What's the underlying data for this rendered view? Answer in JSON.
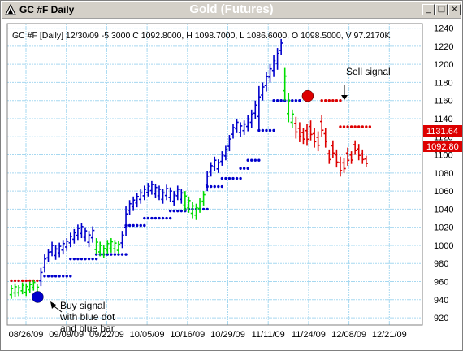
{
  "window": {
    "title": "GC #F Daily",
    "chart_title": "Gold (Futures)",
    "controls": {
      "minimize": "_",
      "maximize": "□",
      "close": "×"
    }
  },
  "info_line": "GC #F [Daily] 12/30/09  -5.3000 C 1092.8000, H 1098.7000, L 1086.6000, O 1098.5000, V 97.2170K",
  "annotations": {
    "sell": "Sell signal",
    "buy_lines": [
      "Buy signal",
      "with blue dot",
      "and blue bar"
    ]
  },
  "price_tags": {
    "upper": "1131.64",
    "lower": "1092.80"
  },
  "colors": {
    "up": "#0000cc",
    "down": "#dd0000",
    "neutral": "#00dd00",
    "grid": "#a6d8f0",
    "tag_bg": "#dd0000",
    "background": "#ffffff"
  },
  "chart_data": {
    "type": "ohlc",
    "x_tick_labels": [
      "08/26/09",
      "09/09/09",
      "09/22/09",
      "10/05/09",
      "10/16/09",
      "10/29/09",
      "11/11/09",
      "11/24/09",
      "12/08/09",
      "12/21/09"
    ],
    "y_ticks": [
      920,
      940,
      960,
      980,
      1000,
      1020,
      1040,
      1060,
      1080,
      1100,
      1120,
      1140,
      1160,
      1180,
      1200,
      1220,
      1240
    ],
    "ylim": [
      912,
      1245
    ],
    "grid": true,
    "bars": [
      {
        "c": "green",
        "h": 956,
        "l": 941
      },
      {
        "c": "green",
        "h": 958,
        "l": 943
      },
      {
        "c": "green",
        "h": 956,
        "l": 944
      },
      {
        "c": "green",
        "h": 959,
        "l": 946
      },
      {
        "c": "green",
        "h": 958,
        "l": 944
      },
      {
        "c": "green",
        "h": 960,
        "l": 947
      },
      {
        "c": "green",
        "h": 962,
        "l": 950
      },
      {
        "c": "green",
        "h": 957,
        "l": 944
      },
      {
        "c": "blue",
        "h": 975,
        "l": 955
      },
      {
        "c": "blue",
        "h": 990,
        "l": 970
      },
      {
        "c": "blue",
        "h": 996,
        "l": 982
      },
      {
        "c": "blue",
        "h": 1004,
        "l": 988
      },
      {
        "c": "blue",
        "h": 1000,
        "l": 984
      },
      {
        "c": "blue",
        "h": 1003,
        "l": 987
      },
      {
        "c": "blue",
        "h": 1006,
        "l": 990
      },
      {
        "c": "blue",
        "h": 1008,
        "l": 994
      },
      {
        "c": "blue",
        "h": 1014,
        "l": 998
      },
      {
        "c": "blue",
        "h": 1018,
        "l": 1002
      },
      {
        "c": "blue",
        "h": 1023,
        "l": 1006
      },
      {
        "c": "blue",
        "h": 1025,
        "l": 1008
      },
      {
        "c": "blue",
        "h": 1020,
        "l": 1004
      },
      {
        "c": "blue",
        "h": 1016,
        "l": 998
      },
      {
        "c": "blue",
        "h": 1021,
        "l": 1003
      },
      {
        "c": "green",
        "h": 1008,
        "l": 990
      },
      {
        "c": "green",
        "h": 1004,
        "l": 988
      },
      {
        "c": "green",
        "h": 1000,
        "l": 986
      },
      {
        "c": "green",
        "h": 1006,
        "l": 990
      },
      {
        "c": "green",
        "h": 1008,
        "l": 992
      },
      {
        "c": "green",
        "h": 1006,
        "l": 992
      },
      {
        "c": "green",
        "h": 1005,
        "l": 990
      },
      {
        "c": "blue",
        "h": 1016,
        "l": 997
      },
      {
        "c": "blue",
        "h": 1043,
        "l": 1010
      },
      {
        "c": "blue",
        "h": 1050,
        "l": 1034
      },
      {
        "c": "blue",
        "h": 1054,
        "l": 1038
      },
      {
        "c": "blue",
        "h": 1058,
        "l": 1042
      },
      {
        "c": "blue",
        "h": 1062,
        "l": 1046
      },
      {
        "c": "blue",
        "h": 1066,
        "l": 1050
      },
      {
        "c": "blue",
        "h": 1069,
        "l": 1054
      },
      {
        "c": "blue",
        "h": 1071,
        "l": 1056
      },
      {
        "c": "blue",
        "h": 1068,
        "l": 1052
      },
      {
        "c": "blue",
        "h": 1066,
        "l": 1050
      },
      {
        "c": "blue",
        "h": 1062,
        "l": 1046
      },
      {
        "c": "blue",
        "h": 1067,
        "l": 1050
      },
      {
        "c": "blue",
        "h": 1064,
        "l": 1048
      },
      {
        "c": "blue",
        "h": 1060,
        "l": 1044
      },
      {
        "c": "blue",
        "h": 1066,
        "l": 1050
      },
      {
        "c": "blue",
        "h": 1062,
        "l": 1046
      },
      {
        "c": "green",
        "h": 1060,
        "l": 1038
      },
      {
        "c": "green",
        "h": 1054,
        "l": 1036
      },
      {
        "c": "green",
        "h": 1048,
        "l": 1030
      },
      {
        "c": "green",
        "h": 1046,
        "l": 1028
      },
      {
        "c": "green",
        "h": 1052,
        "l": 1036
      },
      {
        "c": "green",
        "h": 1060,
        "l": 1044
      },
      {
        "c": "blue",
        "h": 1082,
        "l": 1060
      },
      {
        "c": "blue",
        "h": 1092,
        "l": 1076
      },
      {
        "c": "blue",
        "h": 1098,
        "l": 1082
      },
      {
        "c": "blue",
        "h": 1095,
        "l": 1080
      },
      {
        "c": "blue",
        "h": 1104,
        "l": 1088
      },
      {
        "c": "blue",
        "h": 1110,
        "l": 1094
      },
      {
        "c": "blue",
        "h": 1122,
        "l": 1104
      },
      {
        "c": "blue",
        "h": 1134,
        "l": 1118
      },
      {
        "c": "blue",
        "h": 1140,
        "l": 1124
      },
      {
        "c": "blue",
        "h": 1136,
        "l": 1120
      },
      {
        "c": "blue",
        "h": 1138,
        "l": 1122
      },
      {
        "c": "blue",
        "h": 1144,
        "l": 1126
      },
      {
        "c": "blue",
        "h": 1150,
        "l": 1130
      },
      {
        "c": "blue",
        "h": 1160,
        "l": 1140
      },
      {
        "c": "blue",
        "h": 1176,
        "l": 1128
      },
      {
        "c": "blue",
        "h": 1180,
        "l": 1160
      },
      {
        "c": "blue",
        "h": 1192,
        "l": 1170
      },
      {
        "c": "blue",
        "h": 1200,
        "l": 1180
      },
      {
        "c": "blue",
        "h": 1210,
        "l": 1186
      },
      {
        "c": "blue",
        "h": 1218,
        "l": 1194
      },
      {
        "c": "blue",
        "h": 1228,
        "l": 1210
      },
      {
        "c": "green",
        "h": 1196,
        "l": 1160
      },
      {
        "c": "green",
        "h": 1168,
        "l": 1136
      },
      {
        "c": "green",
        "h": 1150,
        "l": 1130
      },
      {
        "c": "red",
        "h": 1142,
        "l": 1118
      },
      {
        "c": "red",
        "h": 1136,
        "l": 1114
      },
      {
        "c": "red",
        "h": 1130,
        "l": 1112
      },
      {
        "c": "red",
        "h": 1134,
        "l": 1110
      },
      {
        "c": "red",
        "h": 1138,
        "l": 1116
      },
      {
        "c": "red",
        "h": 1130,
        "l": 1108
      },
      {
        "c": "red",
        "h": 1126,
        "l": 1104
      },
      {
        "c": "red",
        "h": 1144,
        "l": 1120
      },
      {
        "c": "red",
        "h": 1130,
        "l": 1108
      },
      {
        "c": "red",
        "h": 1106,
        "l": 1090
      },
      {
        "c": "red",
        "h": 1116,
        "l": 1096
      },
      {
        "c": "red",
        "h": 1106,
        "l": 1086
      },
      {
        "c": "red",
        "h": 1098,
        "l": 1076
      },
      {
        "c": "red",
        "h": 1096,
        "l": 1080
      },
      {
        "c": "red",
        "h": 1108,
        "l": 1088
      },
      {
        "c": "red",
        "h": 1104,
        "l": 1090
      },
      {
        "c": "red",
        "h": 1116,
        "l": 1100
      },
      {
        "c": "red",
        "h": 1112,
        "l": 1094
      },
      {
        "c": "red",
        "h": 1106,
        "l": 1090
      },
      {
        "c": "red",
        "h": 1099,
        "l": 1087
      }
    ],
    "stop_dots": [
      {
        "c": "red",
        "y": 961,
        "from": 0,
        "to": 7
      },
      {
        "c": "blue",
        "y": 966,
        "from": 9,
        "to": 16
      },
      {
        "c": "blue",
        "y": 985,
        "from": 16,
        "to": 23
      },
      {
        "c": "blue",
        "y": 990,
        "from": 23,
        "to": 31
      },
      {
        "c": "blue",
        "y": 1022,
        "from": 31,
        "to": 36
      },
      {
        "c": "blue",
        "y": 1030,
        "from": 36,
        "to": 43
      },
      {
        "c": "blue",
        "y": 1038,
        "from": 43,
        "to": 47
      },
      {
        "c": "blue",
        "y": 1040,
        "from": 47,
        "to": 53
      },
      {
        "c": "blue",
        "y": 1065,
        "from": 53,
        "to": 57
      },
      {
        "c": "blue",
        "y": 1074,
        "from": 57,
        "to": 62
      },
      {
        "c": "blue",
        "y": 1085,
        "from": 62,
        "to": 64
      },
      {
        "c": "blue",
        "y": 1094,
        "from": 64,
        "to": 67
      },
      {
        "c": "blue",
        "y": 1127,
        "from": 67,
        "to": 71
      },
      {
        "c": "blue",
        "y": 1160,
        "from": 71,
        "to": 78
      },
      {
        "c": "red",
        "y": 1160,
        "from": 84,
        "to": 89
      },
      {
        "c": "red",
        "y": 1131,
        "from": 89,
        "to": 97
      }
    ],
    "buy_signal": {
      "index": 8,
      "y": 943
    },
    "sell_signal": {
      "index": 78,
      "y": 1165
    }
  }
}
